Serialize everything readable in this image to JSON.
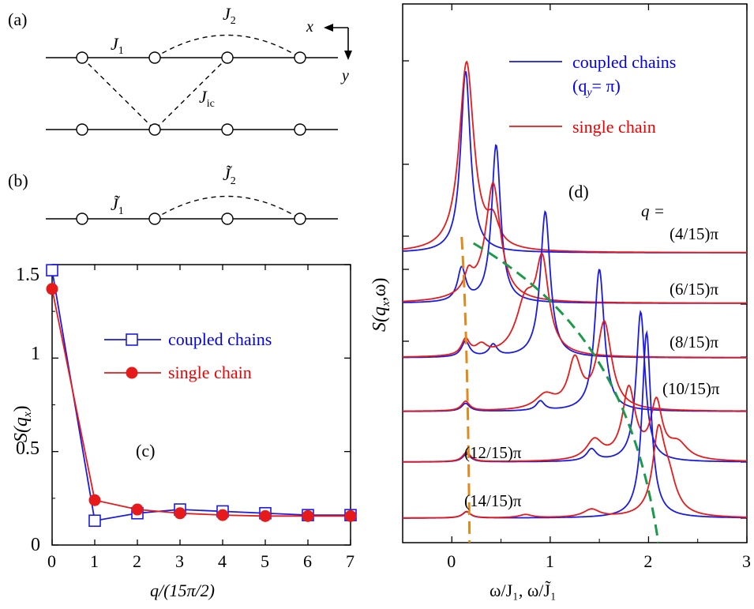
{
  "colors": {
    "coupled": "#1a1ae6",
    "single": "#e61a1a",
    "orange": "#e08a1e",
    "green": "#1a9a4a",
    "axis": "#000000"
  },
  "panel_a": {
    "label": "(a)",
    "J1": "J",
    "J1_sub": "1",
    "J2": "J",
    "J2_sub": "2",
    "Jic": "J",
    "Jic_sub": "ic",
    "x_axis": "x",
    "y_axis": "y"
  },
  "panel_b": {
    "label": "(b)",
    "J1": "J̃",
    "J1_sub": "1",
    "J2": "J̃",
    "J2_sub": "2"
  },
  "panel_c": {
    "label": "(c)",
    "ylabel_main": "S(q",
    "ylabel_sub": "x",
    "ylabel_end": ")",
    "xlabel": "q/(15π/2)"
  },
  "panel_d": {
    "label": "(d)",
    "ylabel_main": "S(q",
    "ylabel_sub": "x",
    "ylabel_end": ",ω)",
    "xlabel": "ω/J₁, ω/J̃₁",
    "legend_coupled": "coupled chains",
    "legend_coupled_q": "(q",
    "legend_coupled_q_sub": "y",
    "legend_coupled_q_end": "= π)",
    "legend_single": "single chain",
    "q_header": "q =",
    "q_labels": [
      "(4/15)π",
      "(6/15)π",
      "(8/15)π",
      "(10/15)π",
      "(12/15)π",
      "(14/15)π"
    ]
  },
  "chart_data": [
    {
      "type": "line",
      "title": "(c)",
      "xlabel": "q/(15π/2)",
      "ylabel": "S(q_x)",
      "xlim": [
        0,
        7
      ],
      "ylim": [
        0,
        1.5
      ],
      "x_ticks": [
        "0",
        "1",
        "2",
        "3",
        "4",
        "5",
        "6",
        "7"
      ],
      "y_ticks": [
        "0",
        "0.5",
        "1",
        "1.5"
      ],
      "x": [
        0,
        1,
        2,
        3,
        4,
        5,
        6,
        7
      ],
      "series": [
        {
          "name": "coupled chains",
          "marker": "open-square",
          "values": [
            1.47,
            0.13,
            0.17,
            0.19,
            0.18,
            0.17,
            0.16,
            0.16
          ]
        },
        {
          "name": "single chain",
          "marker": "filled-circle",
          "values": [
            1.37,
            0.24,
            0.19,
            0.17,
            0.16,
            0.155,
            0.155,
            0.155
          ]
        }
      ],
      "legend": "center-right"
    },
    {
      "type": "line",
      "title": "(d)",
      "xlabel": "ω/J₁, ω/J̃₁",
      "ylabel": "S(q_x,ω)",
      "xlim": [
        -0.5,
        3
      ],
      "x_ticks": [
        "0",
        "1",
        "2",
        "3"
      ],
      "offset_curves": [
        {
          "q": "(4/15)π",
          "coupled_peak": 0.14,
          "single_peak": 0.15
        },
        {
          "q": "(6/15)π",
          "coupled_peak": 0.45,
          "single_peak": 0.4
        },
        {
          "q": "(8/15)π",
          "coupled_peak": 0.95,
          "single_peak": 0.92
        },
        {
          "q": "(10/15)π",
          "coupled_peak": 1.5,
          "single_peak": 1.55
        },
        {
          "q": "(12/15)π",
          "coupled_peak": 1.9,
          "single_peak": 1.95
        },
        {
          "q": "(14/15)π",
          "coupled_peak": 2.0,
          "single_peak": 2.15
        }
      ],
      "legend": "top-right"
    }
  ]
}
